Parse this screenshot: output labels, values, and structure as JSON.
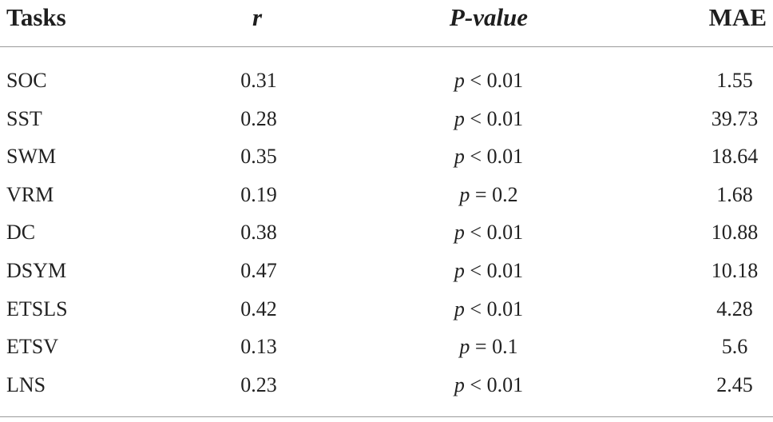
{
  "columns": {
    "tasks": "Tasks",
    "r": "r",
    "p_value": "P-value",
    "mae": "MAE"
  },
  "rows": [
    {
      "task": "SOC",
      "r": "0.31",
      "p_var": "p",
      "p_rel": " < 0.01",
      "mae": "1.55"
    },
    {
      "task": "SST",
      "r": "0.28",
      "p_var": "p",
      "p_rel": " < 0.01",
      "mae": "39.73"
    },
    {
      "task": "SWM",
      "r": "0.35",
      "p_var": "p",
      "p_rel": " < 0.01",
      "mae": "18.64"
    },
    {
      "task": "VRM",
      "r": "0.19",
      "p_var": "p",
      "p_rel": " = 0.2",
      "mae": "1.68"
    },
    {
      "task": "DC",
      "r": "0.38",
      "p_var": "p",
      "p_rel": " < 0.01",
      "mae": "10.88"
    },
    {
      "task": "DSYM",
      "r": "0.47",
      "p_var": "p",
      "p_rel": " < 0.01",
      "mae": "10.18"
    },
    {
      "task": "ETSLS",
      "r": "0.42",
      "p_var": "p",
      "p_rel": " < 0.01",
      "mae": "4.28"
    },
    {
      "task": "ETSV",
      "r": "0.13",
      "p_var": "p",
      "p_rel": " = 0.1",
      "mae": "5.6"
    },
    {
      "task": "LNS",
      "r": "0.23",
      "p_var": "p",
      "p_rel": " < 0.01",
      "mae": "2.45"
    }
  ]
}
